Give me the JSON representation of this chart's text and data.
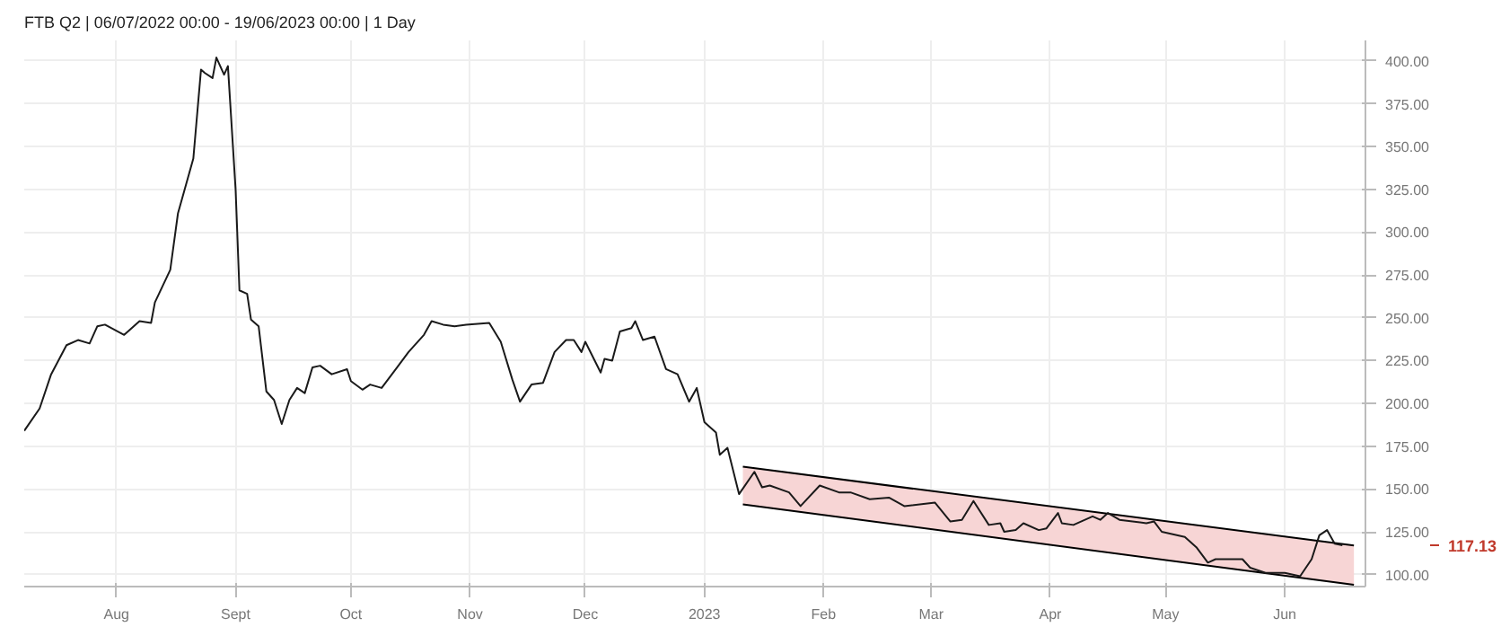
{
  "chart_data": {
    "type": "line",
    "title": "FTB Q2 | 06/07/2022 00:00 - 19/06/2023 00:00 | 1 Day",
    "xlim": [
      "2022-07-08",
      "2023-06-22"
    ],
    "xticks": [
      {
        "value": "2022-08-01",
        "label": "Aug"
      },
      {
        "value": "2022-09-01",
        "label": "Sept"
      },
      {
        "value": "2022-10-01",
        "label": "Oct"
      },
      {
        "value": "2022-11-01",
        "label": "Nov"
      },
      {
        "value": "2022-12-01",
        "label": "Dec"
      },
      {
        "value": "2023-01-01",
        "label": "2023"
      },
      {
        "value": "2023-02-01",
        "label": "Feb"
      },
      {
        "value": "2023-03-01",
        "label": "Mar"
      },
      {
        "value": "2023-04-01",
        "label": "Apr"
      },
      {
        "value": "2023-05-01",
        "label": "May"
      },
      {
        "value": "2023-06-01",
        "label": "Jun"
      }
    ],
    "ylim": [
      93,
      412
    ],
    "yticks": [
      {
        "value": 100,
        "label": "100.00"
      },
      {
        "value": 125,
        "label": "125.00"
      },
      {
        "value": 150,
        "label": "150.00"
      },
      {
        "value": 175,
        "label": "175.00"
      },
      {
        "value": 200,
        "label": "200.00"
      },
      {
        "value": 225,
        "label": "225.00"
      },
      {
        "value": 250,
        "label": "250.00"
      },
      {
        "value": 275,
        "label": "275.00"
      },
      {
        "value": 300,
        "label": "300.00"
      },
      {
        "value": 325,
        "label": "325.00"
      },
      {
        "value": 350,
        "label": "350.00"
      },
      {
        "value": 375,
        "label": "375.00"
      },
      {
        "value": 400,
        "label": "400.00"
      }
    ],
    "grid": true,
    "annotations": [
      "117.13"
    ],
    "series": [
      {
        "type": "line",
        "color": "#000000",
        "x": [
          "2023-01-11",
          "2023-06-19"
        ],
        "values": [
          163,
          117
        ],
        "lower": [
          141,
          94
        ],
        "upper": [
          163,
          117
        ]
      },
      {
        "type": "line",
        "color": "#000000",
        "x": [
          "2023-01-11",
          "2023-06-19"
        ],
        "values": [
          141,
          94
        ]
      },
      {
        "color": "#1a1a1a",
        "x": [
          "2022-07-08",
          "2022-07-12",
          "2022-07-15",
          "2022-07-19",
          "2022-07-22",
          "2022-07-25",
          "2022-07-27",
          "2022-07-29",
          "2022-08-03",
          "2022-08-07",
          "2022-08-10",
          "2022-08-11",
          "2022-08-15",
          "2022-08-17",
          "2022-08-21",
          "2022-08-23",
          "2022-08-24",
          "2022-08-26",
          "2022-08-27",
          "2022-08-28",
          "2022-08-29",
          "2022-08-30",
          "2022-09-01",
          "2022-09-02",
          "2022-09-04",
          "2022-09-05",
          "2022-09-07",
          "2022-09-09",
          "2022-09-11",
          "2022-09-13",
          "2022-09-15",
          "2022-09-17",
          "2022-09-19",
          "2022-09-21",
          "2022-09-23",
          "2022-09-26",
          "2022-09-30",
          "2022-10-01",
          "2022-10-04",
          "2022-10-06",
          "2022-10-09",
          "2022-10-13",
          "2022-10-16",
          "2022-10-20",
          "2022-10-22",
          "2022-10-25",
          "2022-10-28",
          "2022-10-31",
          "2022-11-06",
          "2022-11-09",
          "2022-11-12",
          "2022-11-14",
          "2022-11-17",
          "2022-11-20",
          "2022-11-23",
          "2022-11-26",
          "2022-11-28",
          "2022-11-30",
          "2022-12-01",
          "2022-12-05",
          "2022-12-06",
          "2022-12-08",
          "2022-12-10",
          "2022-12-13",
          "2022-12-14",
          "2022-12-16",
          "2022-12-19",
          "2022-12-22",
          "2022-12-25",
          "2022-12-28",
          "2022-12-30",
          "2023-01-01",
          "2023-01-04",
          "2023-01-05",
          "2023-01-07",
          "2023-01-10",
          "2023-01-14",
          "2023-01-16",
          "2023-01-18",
          "2023-01-23",
          "2023-01-26",
          "2023-01-31",
          "2023-02-05",
          "2023-02-08",
          "2023-02-13",
          "2023-02-18",
          "2023-02-22",
          "2023-03-02",
          "2023-03-06",
          "2023-03-09",
          "2023-03-12",
          "2023-03-16",
          "2023-03-19",
          "2023-03-20",
          "2023-03-23",
          "2023-03-25",
          "2023-03-29",
          "2023-03-31",
          "2023-04-03",
          "2023-04-04",
          "2023-04-07",
          "2023-04-12",
          "2023-04-14",
          "2023-04-16",
          "2023-04-19",
          "2023-04-26",
          "2023-04-28",
          "2023-04-30",
          "2023-05-06",
          "2023-05-09",
          "2023-05-12",
          "2023-05-14",
          "2023-05-21",
          "2023-05-23",
          "2023-05-27",
          "2023-06-01",
          "2023-06-05",
          "2023-06-08",
          "2023-06-10",
          "2023-06-12",
          "2023-06-14",
          "2023-06-16"
        ],
        "values": [
          184,
          197,
          217,
          234,
          237,
          235,
          245,
          246,
          240,
          248,
          247,
          259,
          278,
          311,
          343,
          395,
          393,
          390,
          402,
          397,
          392,
          397,
          325,
          266,
          264,
          249,
          245,
          207,
          202,
          188,
          202,
          209,
          206,
          221,
          222,
          217,
          220,
          213,
          208,
          211,
          209,
          221,
          230,
          240,
          248,
          246,
          245,
          246,
          247,
          236,
          214,
          201,
          211,
          212,
          230,
          237,
          237,
          230,
          236,
          218,
          226,
          225,
          242,
          244,
          248,
          237,
          239,
          220,
          217,
          201,
          209,
          189,
          183,
          170,
          174,
          147,
          160,
          151,
          152,
          148,
          140,
          152,
          148,
          148,
          144,
          145,
          140,
          142,
          131,
          132,
          143,
          129,
          130,
          125,
          126,
          130,
          126,
          127,
          136,
          130,
          129,
          134,
          132,
          136,
          132,
          130,
          131,
          125,
          122,
          116,
          107,
          109,
          109,
          104,
          101,
          101,
          99,
          109,
          123,
          126,
          118,
          117.13
        ]
      }
    ]
  }
}
